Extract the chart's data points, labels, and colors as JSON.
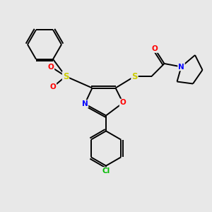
{
  "bg_color": "#e8e8e8",
  "bond_color": "#000000",
  "atom_colors": {
    "S": "#cccc00",
    "O": "#ff0000",
    "N": "#0000ff",
    "Cl": "#00bb00",
    "C": "#000000"
  },
  "figsize": [
    3.0,
    3.0
  ],
  "dpi": 100,
  "lw": 1.4,
  "fontsize": 7.5
}
